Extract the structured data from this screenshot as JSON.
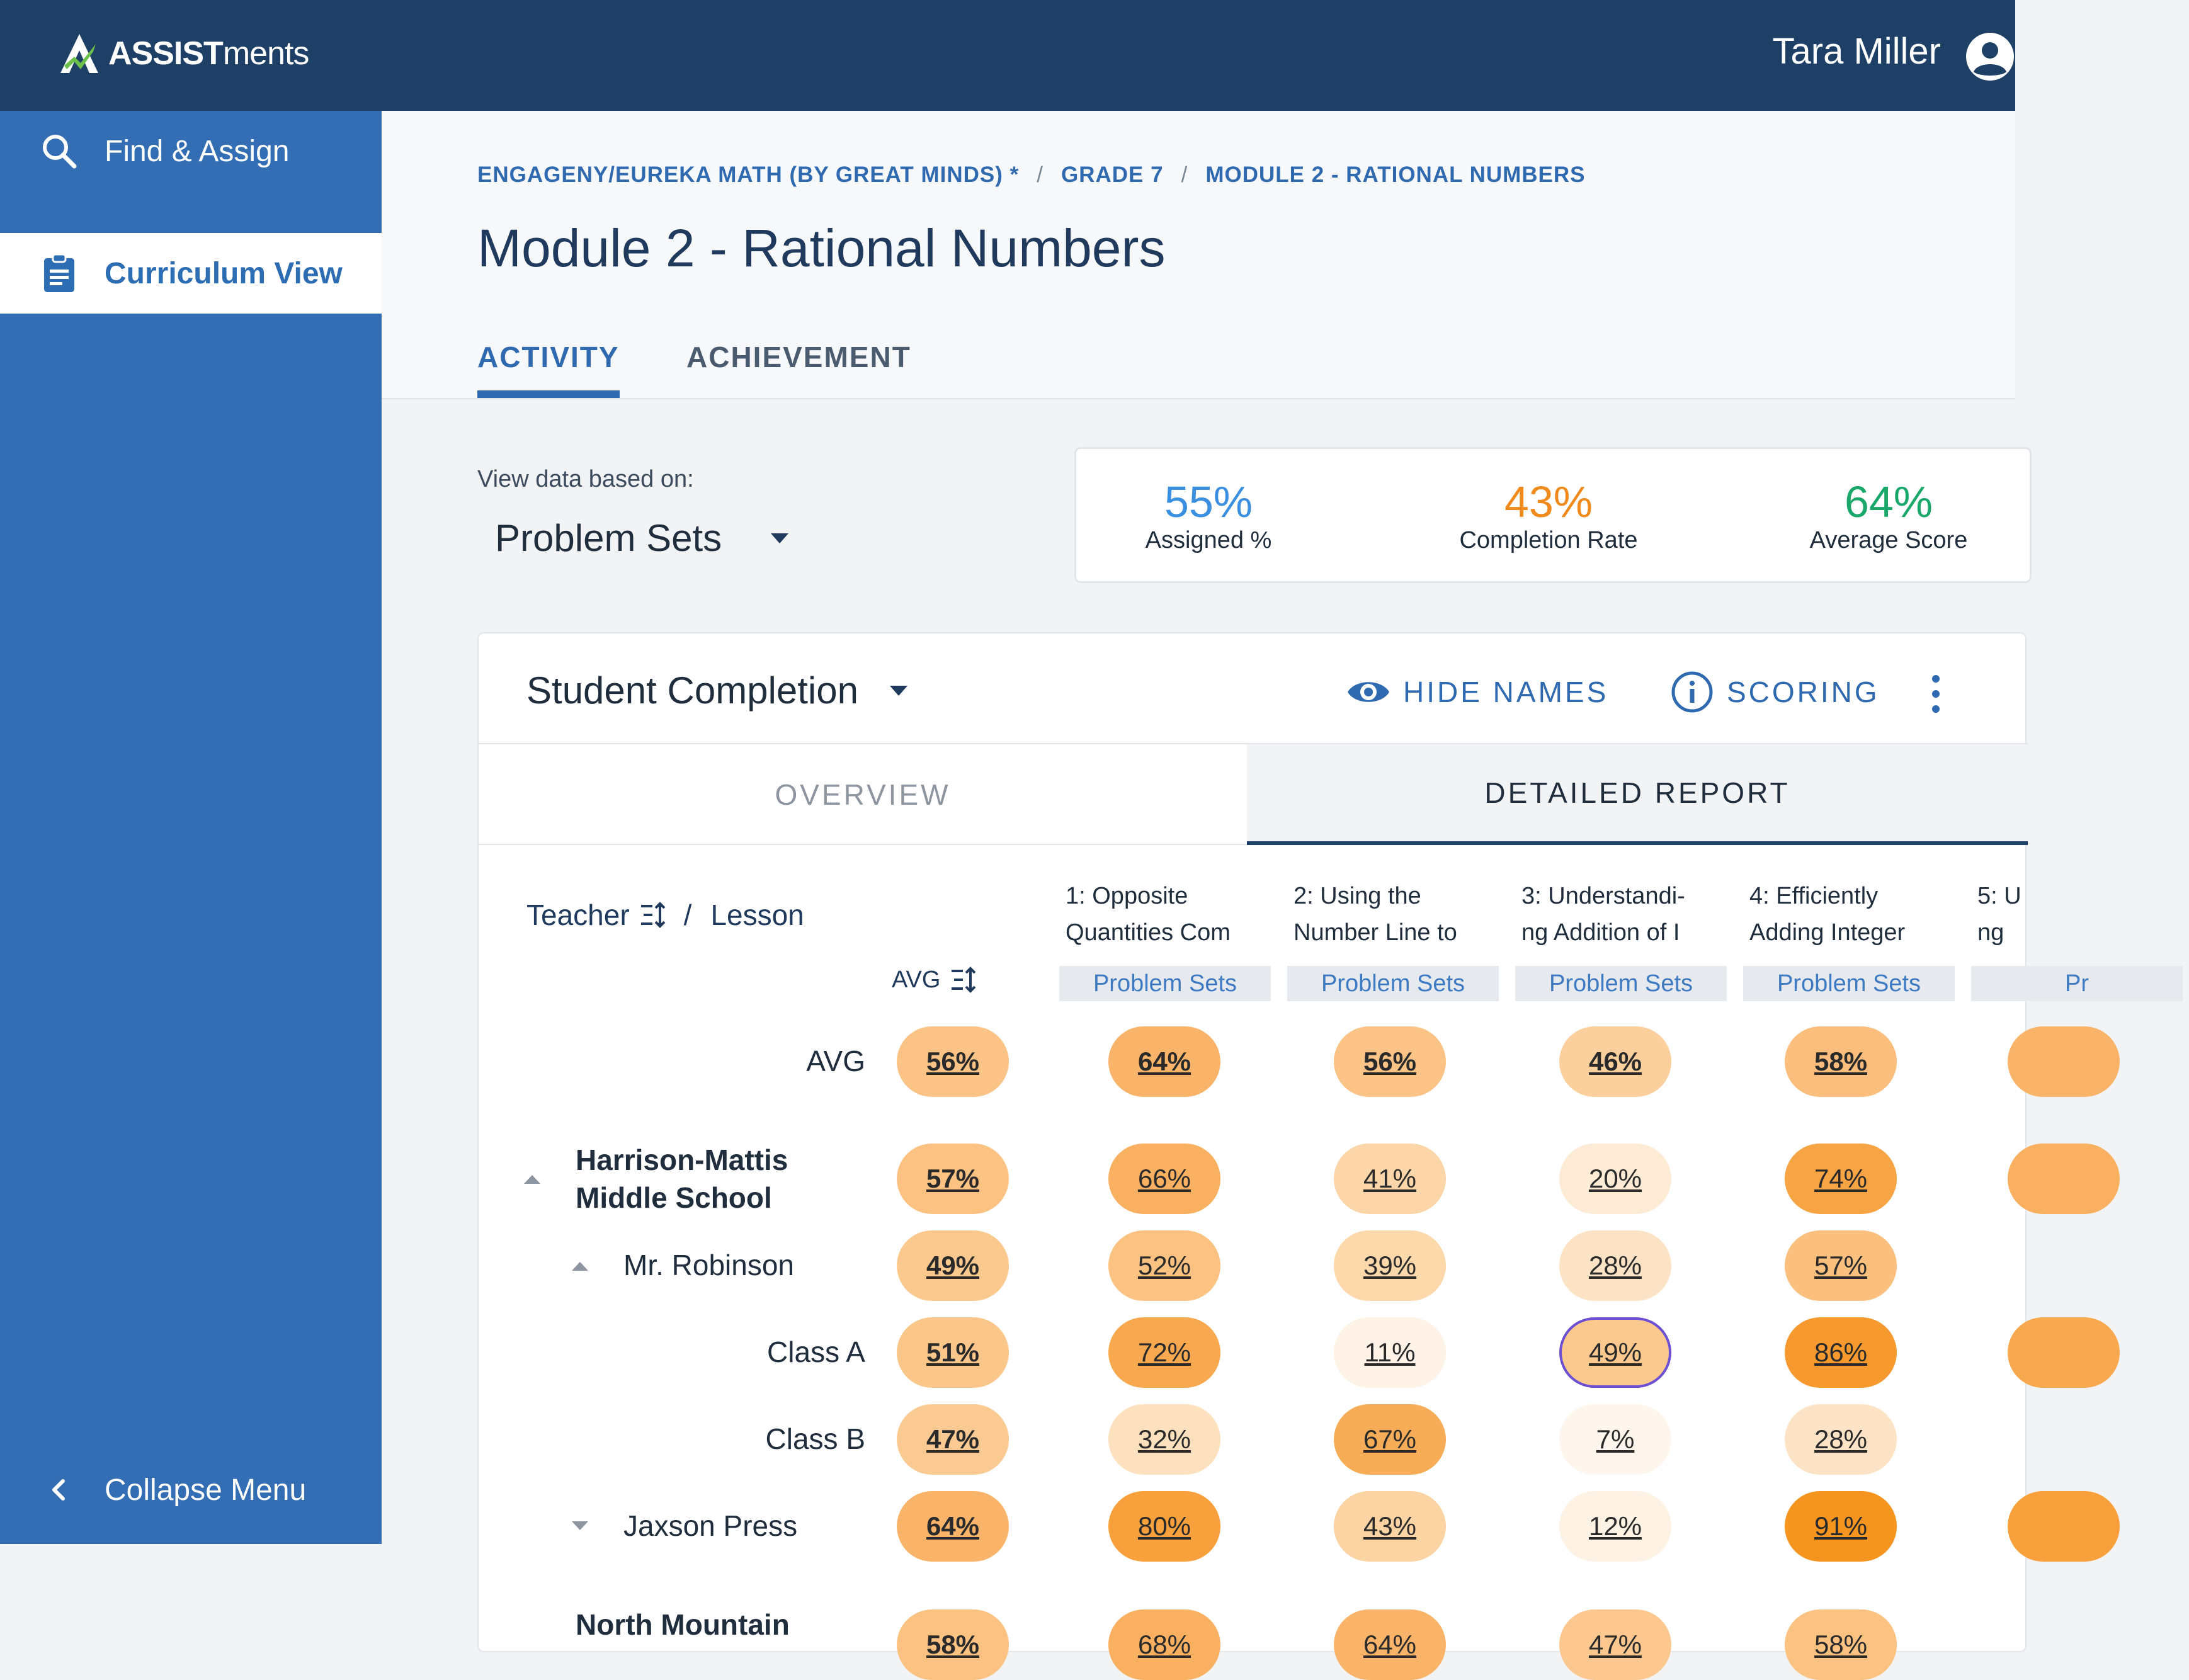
{
  "app": {
    "logo_bold": "ASSIST",
    "logo_light": "ments",
    "user_name": "Tara Miller"
  },
  "sidebar": {
    "find": "Find & Assign",
    "curriculum": "Curriculum View",
    "collapse": "Collapse Menu"
  },
  "breadcrumb": [
    "ENGAGENY/EUREKA MATH (BY GREAT MINDS) *",
    "GRADE 7",
    "MODULE 2 - RATIONAL NUMBERS"
  ],
  "page_title": "Module 2 - Rational Numbers",
  "tabs": {
    "activity": "ACTIVITY",
    "achievement": "ACHIEVEMENT"
  },
  "view_data": {
    "label": "View data based on:",
    "value": "Problem Sets"
  },
  "stats": [
    {
      "value": "55%",
      "label": "Assigned %",
      "color": "#3a8fe0"
    },
    {
      "value": "43%",
      "label": "Completion Rate",
      "color": "#f08a1c"
    },
    {
      "value": "64%",
      "label": "Average Score",
      "color": "#1aa86a"
    }
  ],
  "report": {
    "title": "Student Completion",
    "hide_names": "HIDE NAMES",
    "scoring": "SCORING",
    "subtabs": {
      "overview": "OVERVIEW",
      "detailed": "DETAILED REPORT"
    },
    "header": {
      "teacher": "Teacher",
      "slash": "/",
      "lesson": "Lesson",
      "avg": "AVG"
    },
    "columns": [
      {
        "line1": "1: Opposite",
        "line2": "Quantities Com",
        "tag": "Problem Sets"
      },
      {
        "line1": "2: Using the",
        "line2": "Number Line to",
        "tag": "Problem Sets"
      },
      {
        "line1": "3: Understandi-",
        "line2": "ng Addition of I",
        "tag": "Problem Sets"
      },
      {
        "line1": "4: Efficiently",
        "line2": "Adding Integer",
        "tag": "Problem Sets"
      },
      {
        "line1": "5: U",
        "line2": "ng",
        "tag": "Pr"
      }
    ],
    "rows": {
      "avg": {
        "label": "AVG",
        "values": [
          "56%",
          "64%",
          "56%",
          "46%",
          "58%"
        ]
      },
      "harrison": {
        "label_line1": "Harrison-Mattis",
        "label_line2": "Middle School",
        "values": [
          "57%",
          "66%",
          "41%",
          "20%",
          "74%"
        ]
      },
      "robinson": {
        "label": "Mr. Robinson",
        "values": [
          "49%",
          "52%",
          "39%",
          "28%",
          "57%"
        ]
      },
      "class_a": {
        "label": "Class A",
        "values": [
          "51%",
          "72%",
          "11%",
          "49%",
          "86%"
        ]
      },
      "class_b": {
        "label": "Class B",
        "values": [
          "47%",
          "32%",
          "67%",
          "7%",
          "28%"
        ]
      },
      "jaxson": {
        "label": "Jaxson Press",
        "values": [
          "64%",
          "80%",
          "43%",
          "12%",
          "91%"
        ]
      },
      "north": {
        "label": "North Mountain",
        "values": [
          "58%",
          "68%",
          "64%",
          "47%",
          "58%"
        ]
      }
    }
  }
}
